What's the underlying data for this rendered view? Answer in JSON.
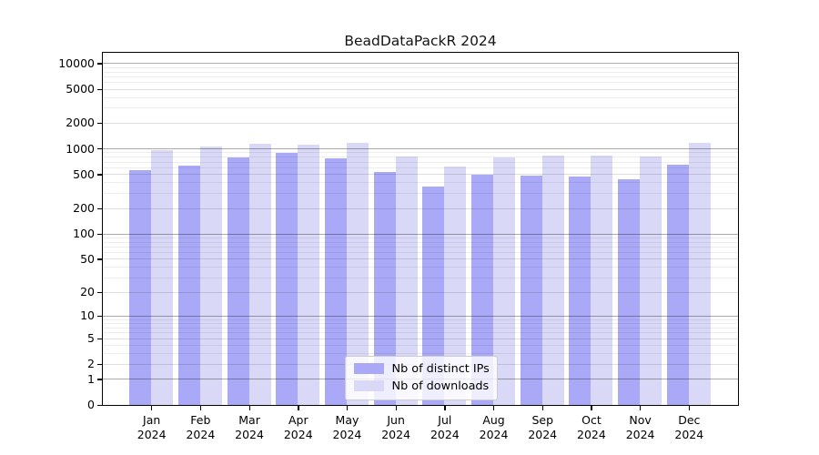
{
  "chart_data": {
    "type": "bar",
    "title": "BeadDataPackR 2024",
    "x_categories": [
      {
        "month": "Jan",
        "year": "2024"
      },
      {
        "month": "Feb",
        "year": "2024"
      },
      {
        "month": "Mar",
        "year": "2024"
      },
      {
        "month": "Apr",
        "year": "2024"
      },
      {
        "month": "May",
        "year": "2024"
      },
      {
        "month": "Jun",
        "year": "2024"
      },
      {
        "month": "Jul",
        "year": "2024"
      },
      {
        "month": "Aug",
        "year": "2024"
      },
      {
        "month": "Sep",
        "year": "2024"
      },
      {
        "month": "Oct",
        "year": "2024"
      },
      {
        "month": "Nov",
        "year": "2024"
      },
      {
        "month": "Dec",
        "year": "2024"
      }
    ],
    "series": [
      {
        "name": "Nb of distinct IPs",
        "color": "#a9a9f7",
        "values": [
          560,
          625,
          780,
          890,
          775,
          530,
          355,
          495,
          485,
          465,
          440,
          645
        ]
      },
      {
        "name": "Nb of downloads",
        "color": "#d9d9f7",
        "values": [
          950,
          1050,
          1130,
          1100,
          1160,
          795,
          620,
          780,
          820,
          825,
          805,
          1160
        ]
      }
    ],
    "y_axis": {
      "scale": "log10(value+1)",
      "ticks": [
        0,
        1,
        2,
        5,
        10,
        20,
        50,
        100,
        200,
        500,
        1000,
        2000,
        5000,
        10000
      ],
      "ylim": [
        0,
        13400
      ]
    },
    "xlabel": "",
    "ylabel": "",
    "grid": true,
    "legend_position": "bottom-center"
  }
}
